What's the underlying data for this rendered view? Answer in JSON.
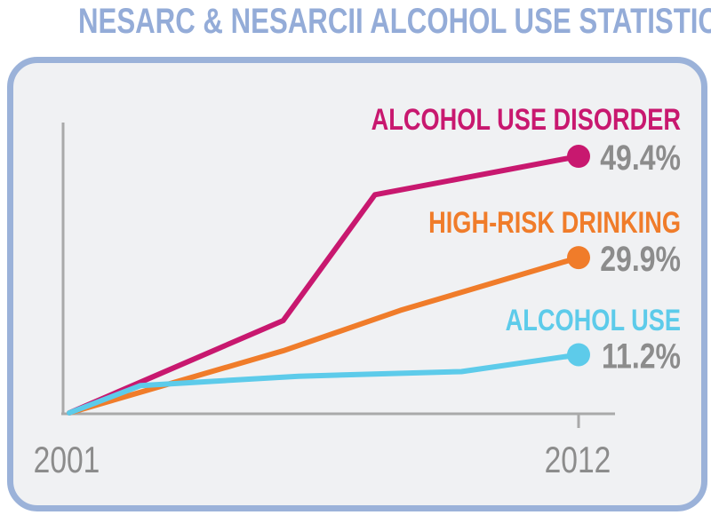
{
  "chart_data": {
    "type": "line",
    "title": "NESARC & NESARCII ALCOHOL USE STATISTICS",
    "x": [
      2001,
      2012
    ],
    "x_tick_labels": [
      "2001",
      "2012"
    ],
    "y_axis_labels_shown": false,
    "series": [
      {
        "name": "ALCOHOL USE DISORDER",
        "label": "49.4%",
        "end_value": 49.4,
        "color": "#c8186f"
      },
      {
        "name": "HIGH-RISK DRINKING",
        "label": "29.9%",
        "end_value": 29.9,
        "color": "#f07c2a"
      },
      {
        "name": "ALCOHOL USE",
        "label": "11.2%",
        "end_value": 11.2,
        "color": "#5dcbea"
      }
    ],
    "grid": false,
    "value_label_color": "#8c8c8c",
    "axis_color": "#a9a9a9"
  }
}
